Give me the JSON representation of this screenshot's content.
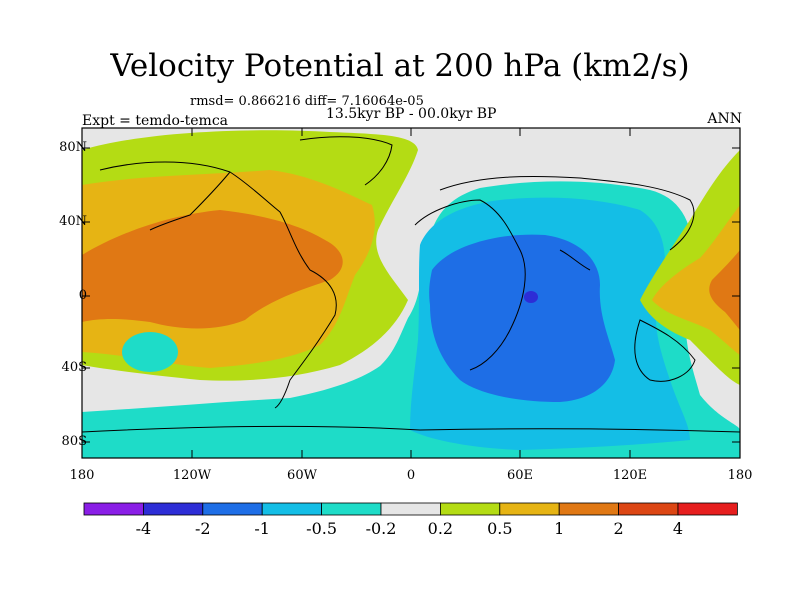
{
  "title": "Velocity Potential at 200 hPa (km2/s)",
  "stats": "rmsd= 0.866216 diff= 7.16064e-05",
  "subtitle": "13.5kyr BP - 00.0kyr BP",
  "experiment": "Expt = temdo-temca",
  "season": "ANN",
  "axes": {
    "y_ticks": [
      "80N",
      "40N",
      "0",
      "40S",
      "80S"
    ],
    "x_ticks": [
      "180",
      "120W",
      "60W",
      "0",
      "60E",
      "120E",
      "180"
    ]
  },
  "colorbar": {
    "labels": [
      "-4",
      "-2",
      "-1",
      "-0.5",
      "-0.2",
      "0.2",
      "0.5",
      "1",
      "2",
      "4"
    ],
    "colors": [
      "#8a1ee6",
      "#2d2dd6",
      "#1e6ee6",
      "#14bee6",
      "#1edcc8",
      "#e6e6e6",
      "#b4dc14",
      "#e6b414",
      "#e07814",
      "#dc4614",
      "#e61e1e"
    ]
  },
  "fill_colors": {
    "background": "#e6e6e6",
    "neg_weak": "#1edcc8",
    "neg_mid": "#14bee6",
    "neg_strong": "#1e6ee6",
    "neg_max": "#2d2dd6",
    "pos_weak": "#b4dc14",
    "pos_mid": "#e6b414",
    "pos_strong": "#e07814"
  }
}
